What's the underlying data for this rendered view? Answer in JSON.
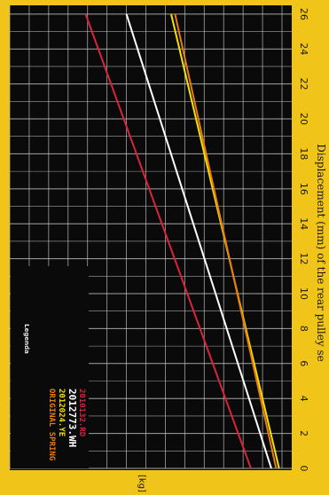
{
  "chart_data": {
    "type": "line",
    "rotated": "90deg clockwise",
    "xlabel": "Displacement (mm) of the rear pulley se",
    "ylabel": "[kg]",
    "legend_title": "Legenda",
    "legend_placement": "bottom-left",
    "x_ticks": [
      0,
      2,
      4,
      6,
      8,
      10,
      12,
      14,
      16,
      18,
      20,
      22,
      24,
      26
    ],
    "xlim": [
      0,
      26.5
    ],
    "ylim": [
      0,
      14
    ],
    "grid": true,
    "background": "#0a0a0a",
    "panel_background": "#f0c419",
    "series": [
      {
        "name": "2010132.RD",
        "color": "#d8243c",
        "x": [
          0,
          26
        ],
        "y": [
          1.6,
          10.1
        ]
      },
      {
        "name": "2012773.WH",
        "color": "#ffffff",
        "x": [
          0,
          26
        ],
        "y": [
          0.55,
          8.0
        ]
      },
      {
        "name": "2012024.YE",
        "color": "#f2e200",
        "x": [
          0,
          26
        ],
        "y": [
          0.15,
          5.7
        ]
      },
      {
        "name": "ORIGINAL SPRING",
        "color": "#e87c12",
        "x": [
          0,
          26
        ],
        "y": [
          0.3,
          5.5
        ]
      }
    ]
  }
}
